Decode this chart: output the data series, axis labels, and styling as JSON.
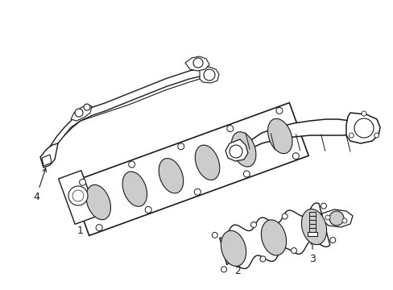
{
  "background_color": "#ffffff",
  "line_color": "#1a1a1a",
  "line_width": 1.0,
  "figure_width": 4.89,
  "figure_height": 3.6,
  "dpi": 100
}
